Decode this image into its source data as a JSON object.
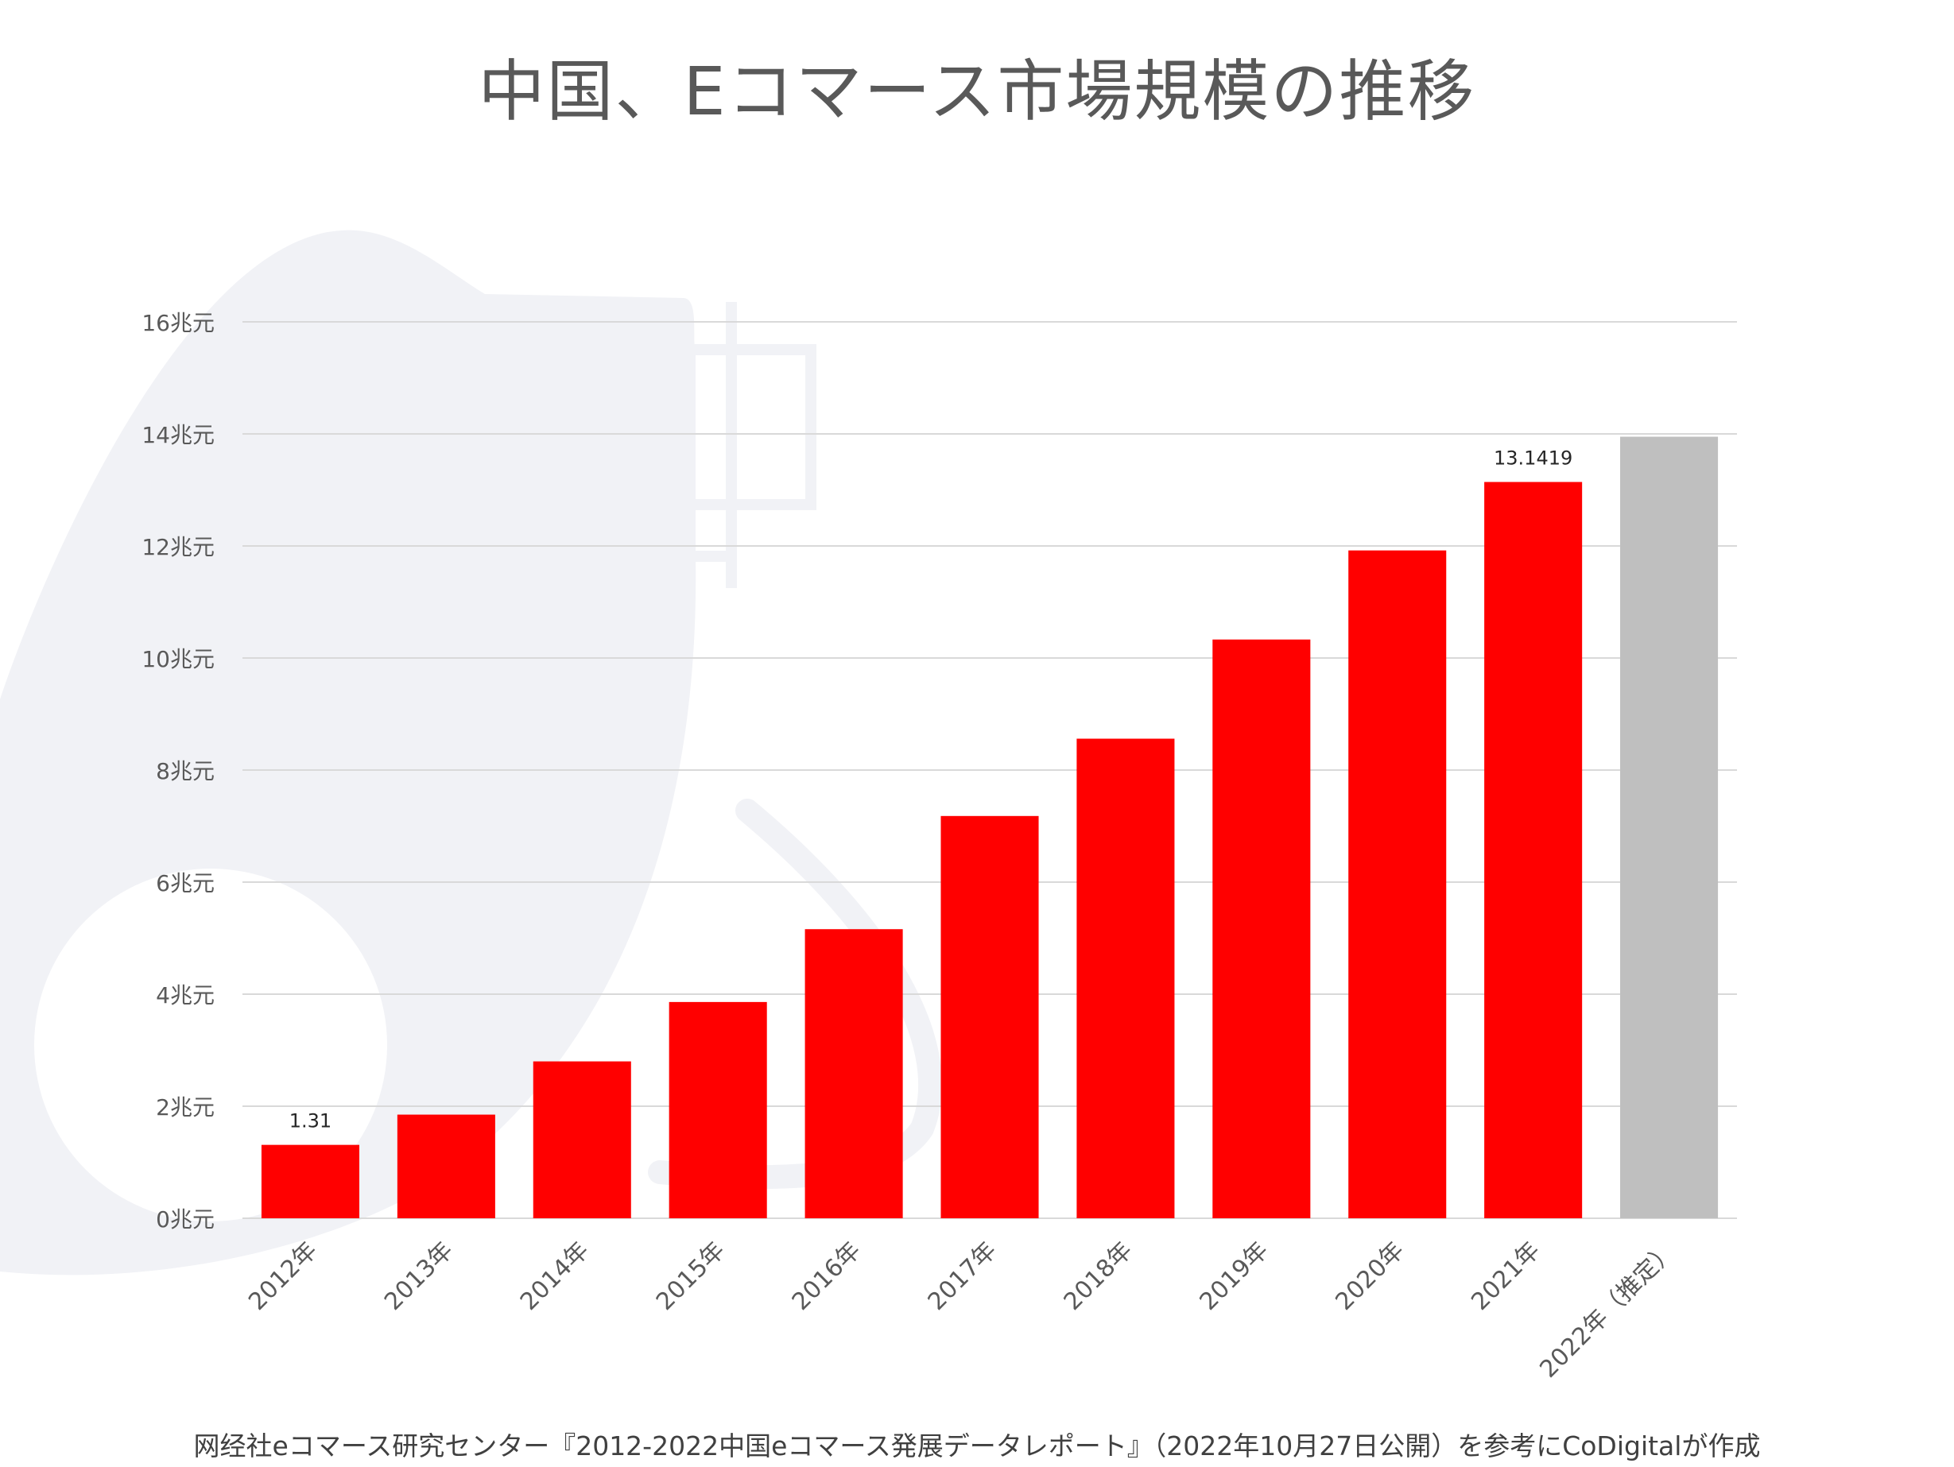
{
  "title": "中国、Eコマース市場規模の推移",
  "source_note": "网经社eコマース研究センター『2012-2022中国eコマース発展データレポート』（2022年10月27日公開）を参考にCoDigitalが作成",
  "colors": {
    "bar": "#ff0000",
    "bar_estimate": "#bfbfbf",
    "grid": "#d9d9d9",
    "axis_text": "#595959",
    "background_art": "#f1f2f6"
  },
  "chart_data": {
    "type": "bar",
    "title": "中国、Eコマース市場規模の推移",
    "categories": [
      "2012年",
      "2013年",
      "2014年",
      "2015年",
      "2016年",
      "2017年",
      "2018年",
      "2019年",
      "2020年",
      "2021年",
      "2022年（推定）"
    ],
    "values": [
      1.31,
      1.85,
      2.8,
      3.86,
      5.16,
      7.18,
      8.56,
      10.33,
      11.92,
      13.1419,
      13.95
    ],
    "estimated": [
      false,
      false,
      false,
      false,
      false,
      false,
      false,
      false,
      false,
      false,
      true
    ],
    "data_labels": [
      "1.31",
      "",
      "",
      "",
      "",
      "",
      "",
      "",
      "",
      "13.1419",
      ""
    ],
    "y_ticks": [
      "0兆元",
      "2兆元",
      "4兆元",
      "6兆元",
      "8兆元",
      "10兆元",
      "12兆元",
      "14兆元",
      "16兆元"
    ],
    "ylim": [
      0,
      16
    ],
    "y_unit": "兆元",
    "xlabel": "",
    "ylabel": "",
    "grid": true,
    "legend": "none"
  }
}
